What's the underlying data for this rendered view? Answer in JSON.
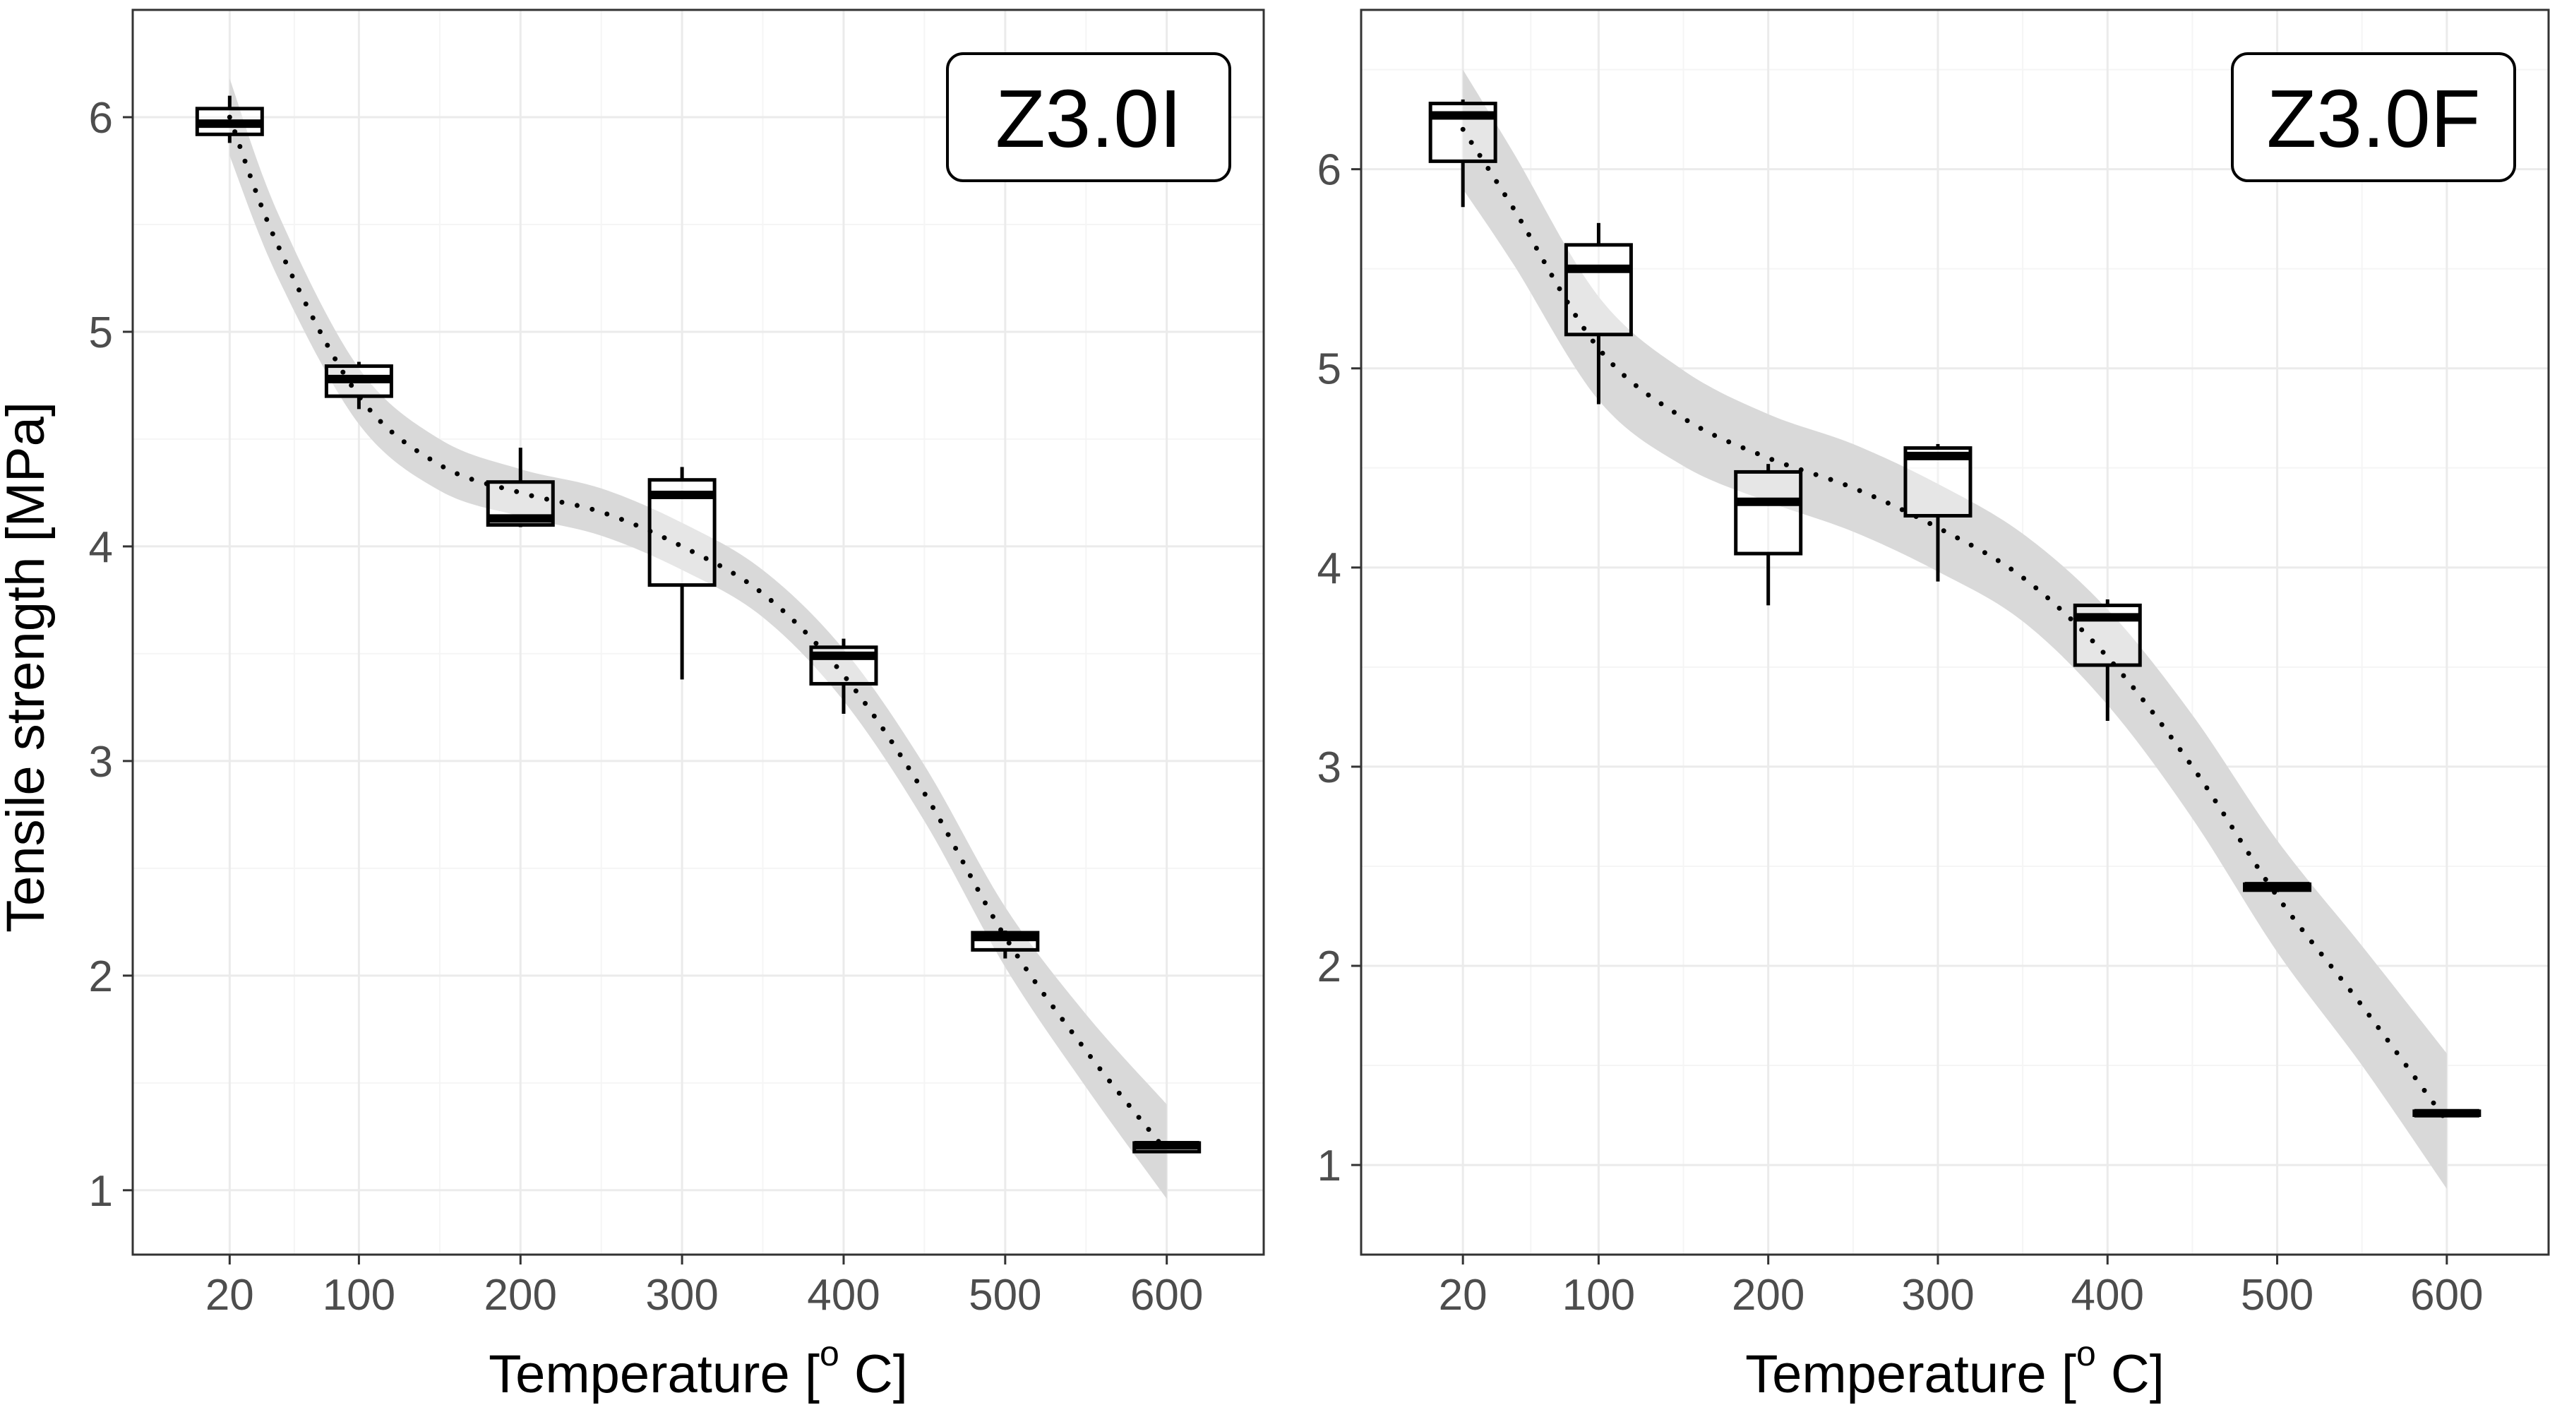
{
  "figure": {
    "ylabel": "Tensile strength [MPa]",
    "xlabel_main": "Temperature [",
    "xlabel_sup": "o",
    "xlabel_end": " C]"
  },
  "colors": {
    "panel_border": "#333333",
    "grid_major": "#ebebeb",
    "grid_minor": "#f5f5f5",
    "ribbon": "#d9d9d9",
    "box_fill": "#ffffff",
    "median": "#000000",
    "tick_label": "#4d4d4d"
  },
  "chart_data": [
    {
      "type": "box",
      "label": "Z3.0I",
      "xlabel": "Temperature [o C]",
      "ylabel": "Tensile strength [MPa]",
      "x_ticks": [
        20,
        100,
        200,
        300,
        400,
        500,
        600
      ],
      "x_tick_labels": [
        "20",
        "100",
        "200",
        "300",
        "400",
        "500",
        "600"
      ],
      "xlim": [
        -40,
        660
      ],
      "y_ticks": [
        1,
        2,
        3,
        4,
        5,
        6
      ],
      "y_tick_labels": [
        "1",
        "2",
        "3",
        "4",
        "5",
        "6"
      ],
      "ylim": [
        0.7,
        6.5
      ],
      "boxes": [
        {
          "x": 20,
          "min": 5.88,
          "q1": 5.92,
          "median": 5.97,
          "q3": 6.04,
          "max": 6.1
        },
        {
          "x": 100,
          "min": 4.64,
          "q1": 4.7,
          "median": 4.78,
          "q3": 4.84,
          "max": 4.86
        },
        {
          "x": 200,
          "min": 4.09,
          "q1": 4.1,
          "median": 4.13,
          "q3": 4.3,
          "max": 4.46
        },
        {
          "x": 300,
          "min": 3.38,
          "q1": 3.82,
          "median": 4.24,
          "q3": 4.31,
          "max": 4.37
        },
        {
          "x": 400,
          "min": 3.22,
          "q1": 3.36,
          "median": 3.49,
          "q3": 3.53,
          "max": 3.57
        },
        {
          "x": 500,
          "min": 2.08,
          "q1": 2.12,
          "median": 2.18,
          "q3": 2.2,
          "max": 2.21
        },
        {
          "x": 600,
          "min": 1.18,
          "q1": 1.18,
          "median": 1.21,
          "q3": 1.22,
          "max": 1.22
        }
      ],
      "trend": {
        "x": [
          20,
          50,
          100,
          150,
          200,
          250,
          300,
          350,
          400,
          450,
          500,
          550,
          600
        ],
        "y": [
          6.0,
          5.4,
          4.7,
          4.38,
          4.25,
          4.16,
          4.0,
          3.78,
          3.4,
          2.85,
          2.18,
          1.65,
          1.18
        ],
        "ci_half_width": [
          0.18,
          0.15,
          0.13,
          0.12,
          0.11,
          0.11,
          0.11,
          0.11,
          0.12,
          0.13,
          0.14,
          0.17,
          0.22
        ]
      }
    },
    {
      "type": "box",
      "label": "Z3.0F",
      "xlabel": "Temperature [o C]",
      "ylabel": "",
      "x_ticks": [
        20,
        100,
        200,
        300,
        400,
        500,
        600
      ],
      "x_tick_labels": [
        "20",
        "100",
        "200",
        "300",
        "400",
        "500",
        "600"
      ],
      "xlim": [
        -40,
        660
      ],
      "y_ticks": [
        1,
        2,
        3,
        4,
        5,
        6
      ],
      "y_tick_labels": [
        "1",
        "2",
        "3",
        "4",
        "5",
        "6"
      ],
      "ylim": [
        0.55,
        6.8
      ],
      "boxes": [
        {
          "x": 20,
          "min": 5.81,
          "q1": 6.04,
          "median": 6.27,
          "q3": 6.33,
          "max": 6.35
        },
        {
          "x": 100,
          "min": 4.82,
          "q1": 5.17,
          "median": 5.5,
          "q3": 5.62,
          "max": 5.73
        },
        {
          "x": 200,
          "min": 3.81,
          "q1": 4.07,
          "median": 4.33,
          "q3": 4.48,
          "max": 4.52
        },
        {
          "x": 300,
          "min": 3.93,
          "q1": 4.26,
          "median": 4.56,
          "q3": 4.6,
          "max": 4.62
        },
        {
          "x": 400,
          "min": 3.23,
          "q1": 3.51,
          "median": 3.75,
          "q3": 3.81,
          "max": 3.84
        },
        {
          "x": 500,
          "min": 2.37,
          "q1": 2.38,
          "median": 2.4,
          "q3": 2.41,
          "max": 2.41
        },
        {
          "x": 600,
          "min": 1.25,
          "q1": 1.25,
          "median": 1.26,
          "q3": 1.27,
          "max": 1.27
        }
      ],
      "trend": {
        "x": [
          20,
          50,
          100,
          150,
          200,
          250,
          300,
          350,
          400,
          450,
          500,
          550,
          600
        ],
        "y": [
          6.2,
          5.8,
          5.1,
          4.75,
          4.55,
          4.4,
          4.2,
          3.95,
          3.55,
          3.0,
          2.35,
          1.8,
          1.22
        ],
        "ci_half_width": [
          0.3,
          0.28,
          0.26,
          0.24,
          0.22,
          0.22,
          0.22,
          0.22,
          0.24,
          0.26,
          0.28,
          0.3,
          0.34
        ]
      }
    }
  ]
}
